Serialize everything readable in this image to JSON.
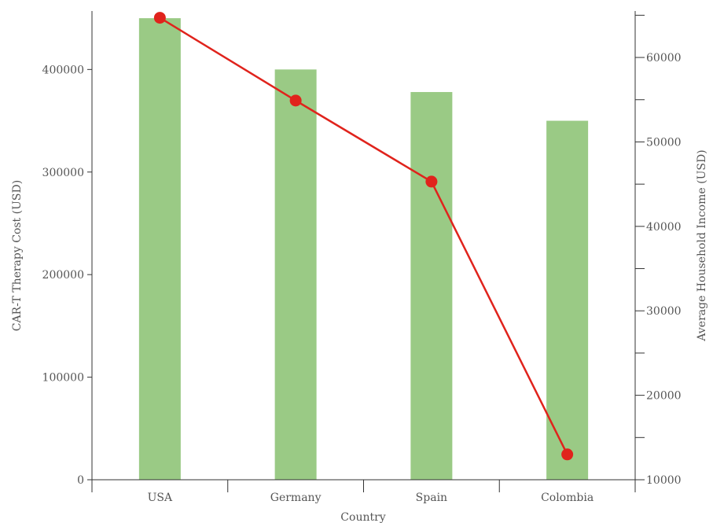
{
  "chart_data": {
    "type": "bar",
    "categories": [
      "USA",
      "Germany",
      "Spain",
      "Colombia"
    ],
    "series": [
      {
        "values": [
          450000,
          400000,
          378000,
          350000
        ],
        "axis": "left",
        "kind": "bar",
        "color": "#9aca85"
      },
      {
        "values": [
          64700,
          54900,
          45300,
          13000
        ],
        "axis": "right",
        "kind": "line",
        "color": "#e0231c"
      }
    ],
    "xlabel": "Country",
    "ylabel": "CAR-T Therapy Cost (USD)",
    "y2label": "Average Household Income (USD)",
    "ylim": [
      0,
      457000
    ],
    "y2lim": [
      10000,
      65500
    ],
    "yticks": [
      0,
      100000,
      200000,
      300000,
      400000
    ],
    "y2ticks": [
      10000,
      20000,
      30000,
      40000,
      50000,
      60000
    ],
    "y2_minor_ticks": [
      15000,
      25000,
      35000,
      45000,
      55000,
      65000
    ],
    "grid": false,
    "legend": "none"
  }
}
